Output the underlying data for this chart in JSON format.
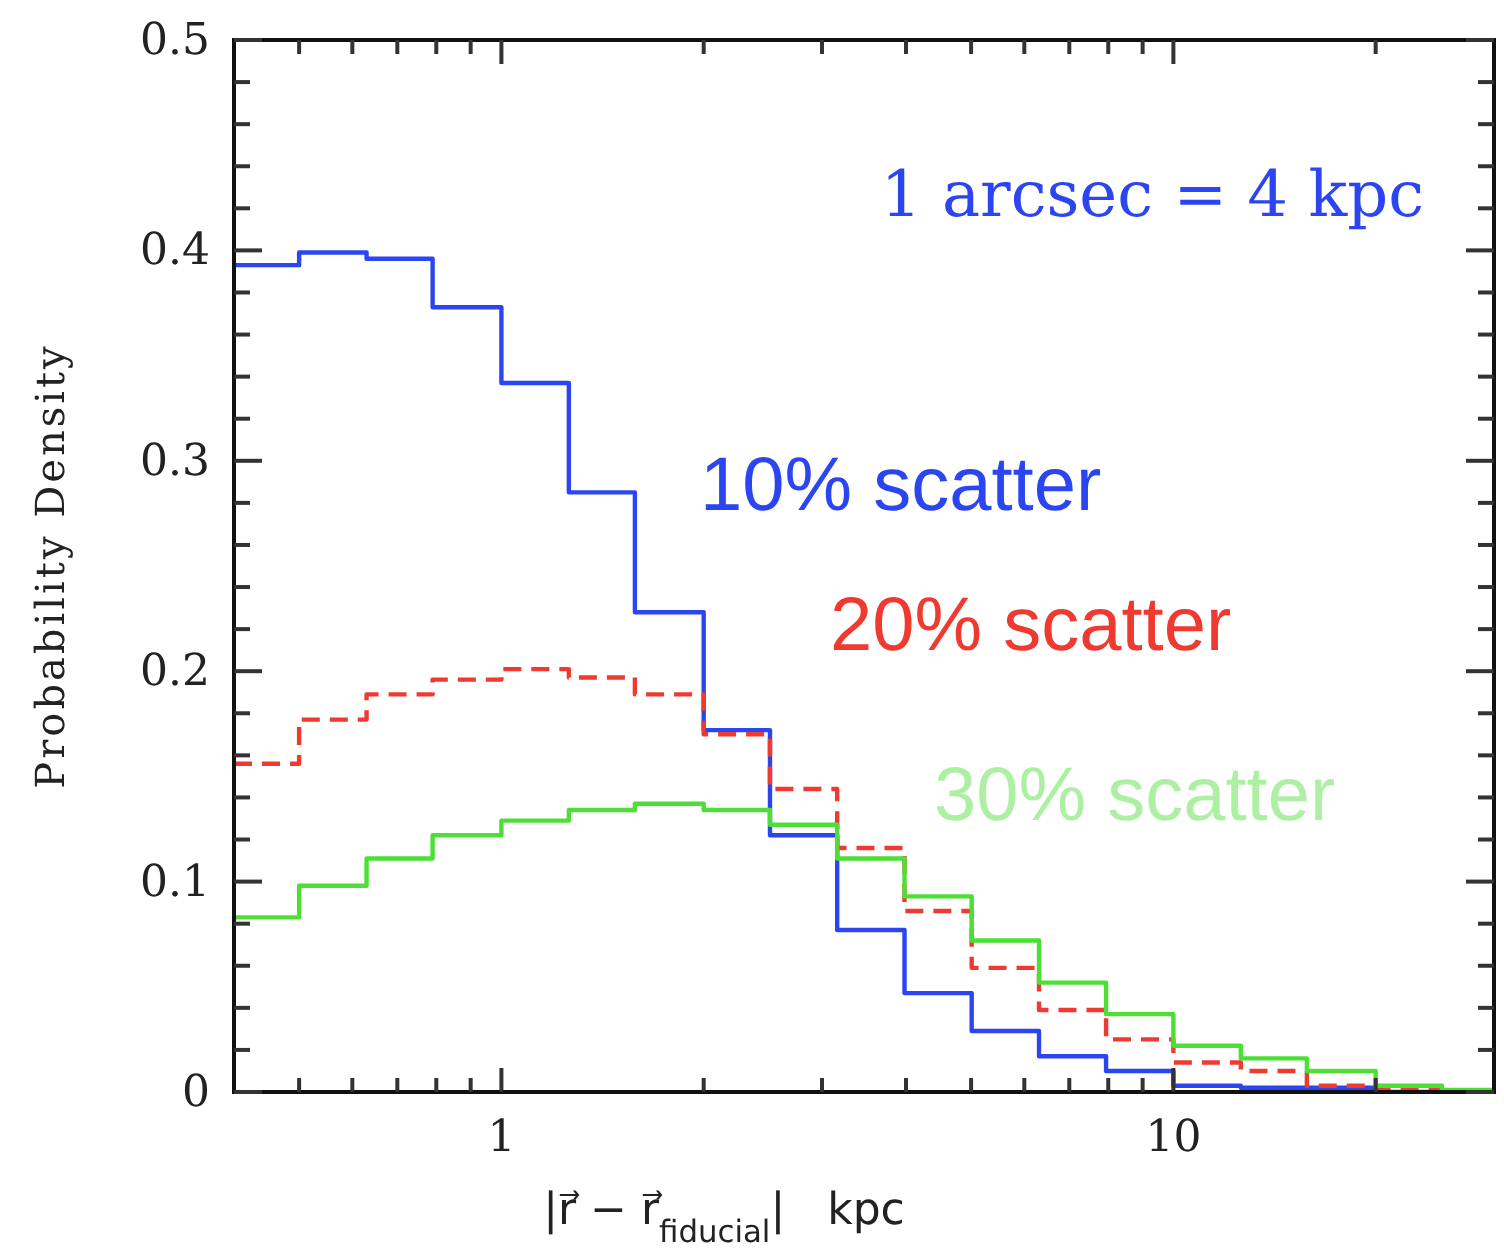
{
  "chart_data": {
    "type": "histogram",
    "xlabel": "|r⃗ − r⃗$_{fiducial}$|   kpc",
    "ylabel": "Probability Density",
    "annotations": [
      "1 arcsec = 4 kpc"
    ],
    "log": "x",
    "xlim": [
      0.4,
      30
    ],
    "ylim": [
      0,
      0.5
    ],
    "xticks": [
      {
        "value": 0.5,
        "label": null
      },
      {
        "value": 0.6,
        "label": null
      },
      {
        "value": 0.7,
        "label": null
      },
      {
        "value": 0.8,
        "label": null
      },
      {
        "value": 0.9,
        "label": null
      },
      1,
      {
        "value": 2,
        "label": null
      },
      {
        "value": 3,
        "label": null
      },
      {
        "value": 4,
        "label": null
      },
      {
        "value": 5,
        "label": null
      },
      {
        "value": 6,
        "label": null
      },
      {
        "value": 7,
        "label": null
      },
      {
        "value": 8,
        "label": null
      },
      {
        "value": 9,
        "label": null
      },
      10,
      {
        "value": 20,
        "label": null
      }
    ],
    "yticks": [
      0,
      {
        "value": 0.02,
        "label": null
      },
      {
        "value": 0.04,
        "label": null
      },
      {
        "value": 0.06,
        "label": null
      },
      {
        "value": 0.08,
        "label": null
      },
      0.1,
      {
        "value": 0.12,
        "label": null
      },
      {
        "value": 0.14,
        "label": null
      },
      {
        "value": 0.16,
        "label": null
      },
      {
        "value": 0.18,
        "label": null
      },
      0.2,
      {
        "value": 0.22,
        "label": null
      },
      {
        "value": 0.24,
        "label": null
      },
      {
        "value": 0.26,
        "label": null
      },
      {
        "value": 0.28,
        "label": null
      },
      0.3,
      {
        "value": 0.32,
        "label": null
      },
      {
        "value": 0.34,
        "label": null
      },
      {
        "value": 0.36,
        "label": null
      },
      {
        "value": 0.38,
        "label": null
      },
      0.4,
      {
        "value": 0.42,
        "label": null
      },
      {
        "value": 0.44,
        "label": null
      },
      {
        "value": 0.46,
        "label": null
      },
      {
        "value": 0.48,
        "label": null
      },
      0.5
    ],
    "bins": [
      0.4,
      0.5,
      0.63,
      0.79,
      1,
      1.26,
      1.58,
      2,
      2.51,
      3.16,
      3.98,
      5.01,
      6.31,
      7.94,
      10,
      12.6,
      15.8,
      20,
      25.1,
      30
    ],
    "series": [
      {
        "name": "10% scatter",
        "color": "#2b45f0",
        "line_style": "solid",
        "values": [
          0.393,
          0.399,
          0.396,
          0.373,
          0.337,
          0.285,
          0.228,
          0.172,
          0.122,
          0.077,
          0.047,
          0.029,
          0.017,
          0.01,
          0.003,
          0.002,
          0.002,
          0,
          0
        ]
      },
      {
        "name": "20% scatter",
        "color": "#ee3a30",
        "line_style": "dashed",
        "values": [
          0.156,
          0.177,
          0.189,
          0.196,
          0.201,
          0.197,
          0.189,
          0.17,
          0.144,
          0.116,
          0.086,
          0.059,
          0.039,
          0.025,
          0.014,
          0.01,
          0.003,
          0.002,
          0
        ]
      },
      {
        "name": "30% scatter",
        "color": "#4ddf36",
        "line_style": "solid",
        "values": [
          0.083,
          0.098,
          0.111,
          0.122,
          0.129,
          0.134,
          0.137,
          0.134,
          0.127,
          0.111,
          0.093,
          0.072,
          0.052,
          0.037,
          0.022,
          0.016,
          0.01,
          0.003,
          0.001
        ]
      }
    ]
  }
}
